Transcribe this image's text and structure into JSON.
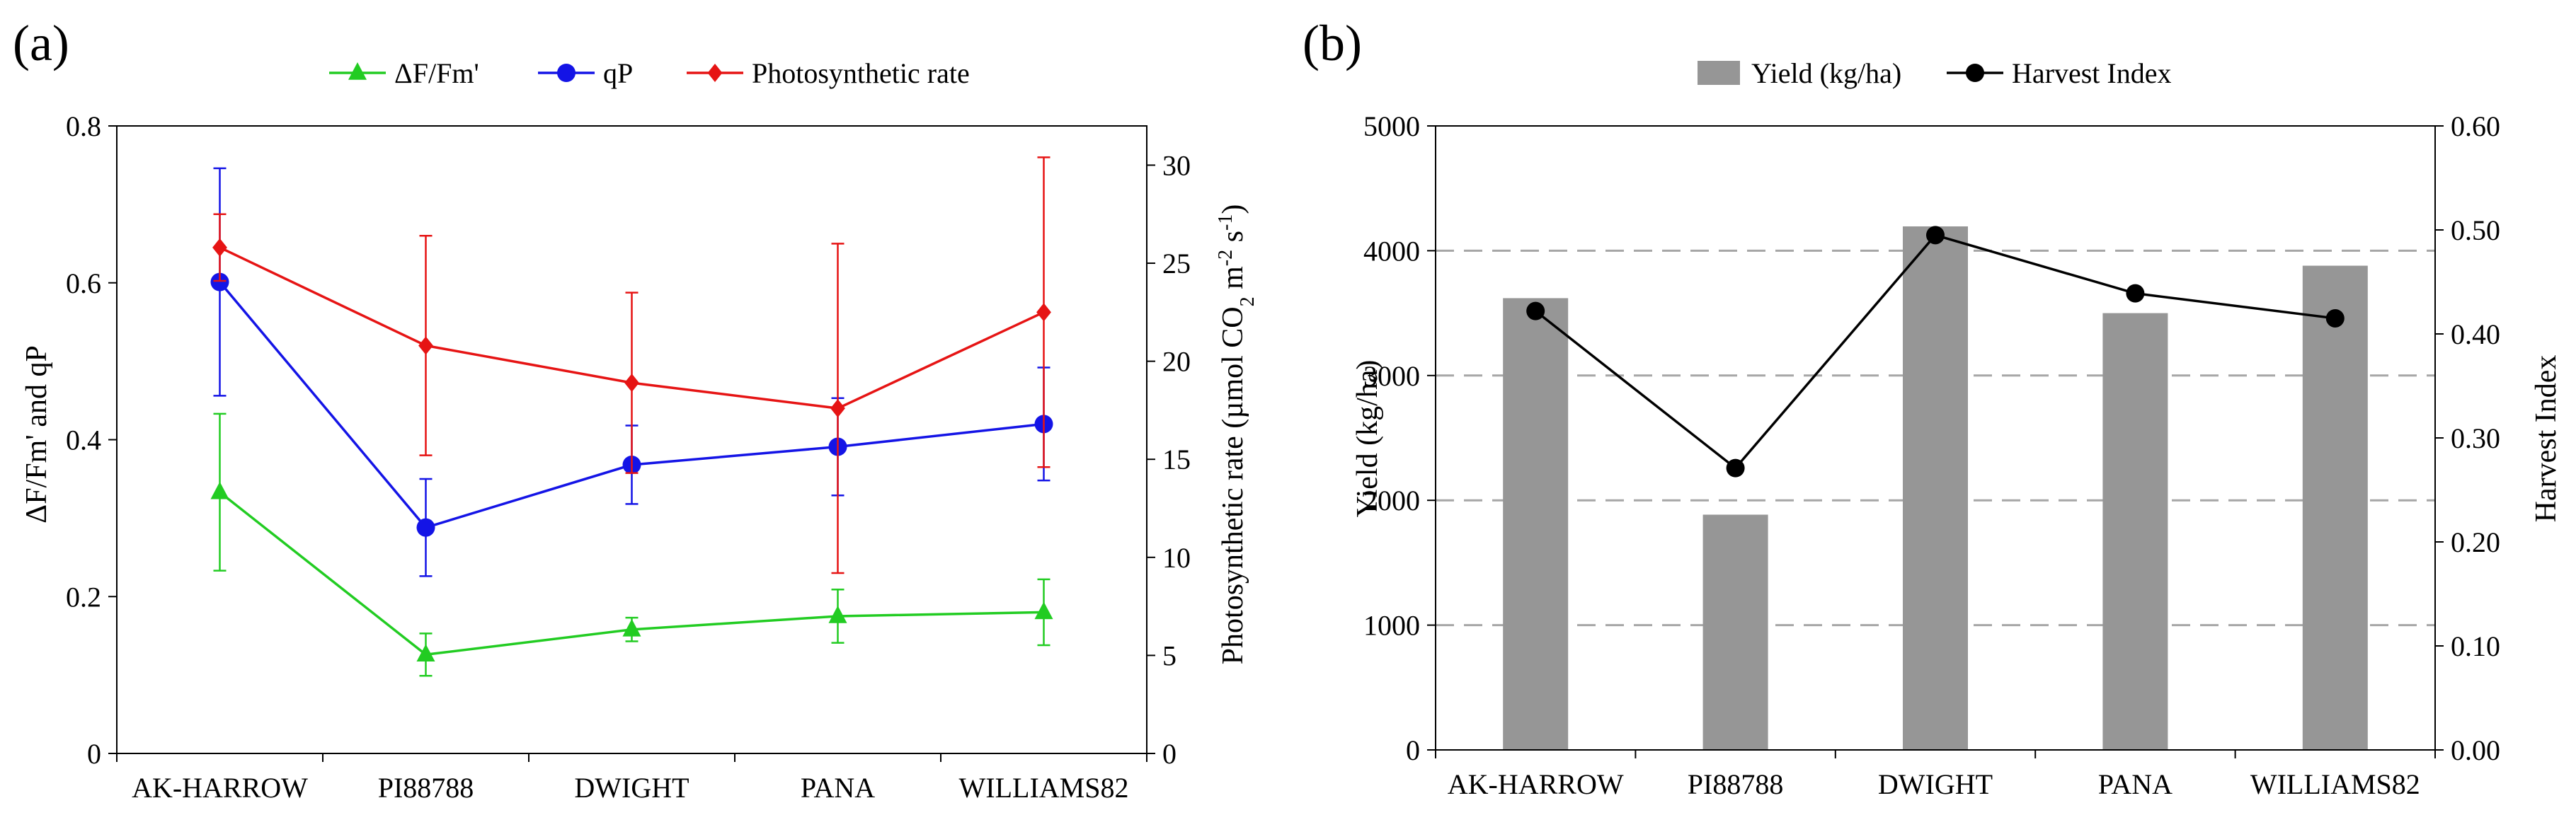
{
  "figure": {
    "panel_a_label": "(a)",
    "panel_b_label": "(b)"
  },
  "chart_data": [
    {
      "panel": "(a)",
      "type": "line",
      "categories": [
        "AK-HARROW",
        "PI88788",
        "DWIGHT",
        "PANA",
        "WILLIAMS82"
      ],
      "series": [
        {
          "name": "ΔF/Fm'",
          "axis": "left",
          "color": "#22cc22",
          "marker": "triangle",
          "values": [
            0.333,
            0.126,
            0.158,
            0.175,
            0.18
          ],
          "errors": [
            0.1,
            0.027,
            0.015,
            0.034,
            0.042
          ]
        },
        {
          "name": "qP",
          "axis": "left",
          "color": "#1414e6",
          "marker": "circle",
          "values": [
            0.601,
            0.288,
            0.368,
            0.391,
            0.42
          ],
          "errors": [
            0.145,
            0.062,
            0.05,
            0.062,
            0.072
          ]
        },
        {
          "name": "Photosynthetic rate",
          "axis": "right",
          "color": "#e61414",
          "marker": "diamond",
          "values": [
            25.8,
            20.8,
            18.9,
            17.6,
            22.5
          ],
          "errors": [
            1.7,
            5.6,
            4.6,
            8.4,
            7.9
          ]
        }
      ],
      "ylabel": "ΔF/Fm' and qP",
      "ylim": [
        0,
        0.8
      ],
      "yticks": [
        "0",
        "0.2",
        "0.4",
        "0.6",
        "0.8"
      ],
      "y2label_main": "Photosynthetic rate (µmol CO",
      "y2label_sub1": "2",
      "y2label_mid": " m",
      "y2label_sup1": "-2",
      "y2label_mid2": " s",
      "y2label_sup2": "-1",
      "y2label_end": ")",
      "y2lim": [
        0,
        32
      ],
      "y2ticks": [
        "0",
        "5",
        "10",
        "15",
        "20",
        "25",
        "30"
      ],
      "grid": false,
      "legend_position": "top"
    },
    {
      "panel": "(b)",
      "type": "bar",
      "categories": [
        "AK-HARROW",
        "PI88788",
        "DWIGHT",
        "PANA",
        "WILLIAMS82"
      ],
      "series": [
        {
          "name": "Yield (kg/ha)",
          "axis": "left",
          "type": "bar",
          "color": "#969696",
          "values": [
            3620,
            1885,
            4195,
            3500,
            3880
          ]
        },
        {
          "name": "Harvest Index",
          "axis": "right",
          "type": "line",
          "color": "#000000",
          "marker": "circle",
          "values": [
            0.422,
            0.271,
            0.495,
            0.439,
            0.415
          ]
        }
      ],
      "ylabel": "Yield (kg/ha)",
      "ylim": [
        0,
        5000
      ],
      "yticks": [
        "0",
        "1000",
        "2000",
        "3000",
        "4000",
        "5000"
      ],
      "y2label": "Harvest Index",
      "y2lim": [
        0,
        0.6
      ],
      "y2ticks": [
        "0.00",
        "0.10",
        "0.20",
        "0.30",
        "0.40",
        "0.50",
        "0.60"
      ],
      "grid": "dashed-horizontal",
      "legend_position": "top"
    }
  ]
}
